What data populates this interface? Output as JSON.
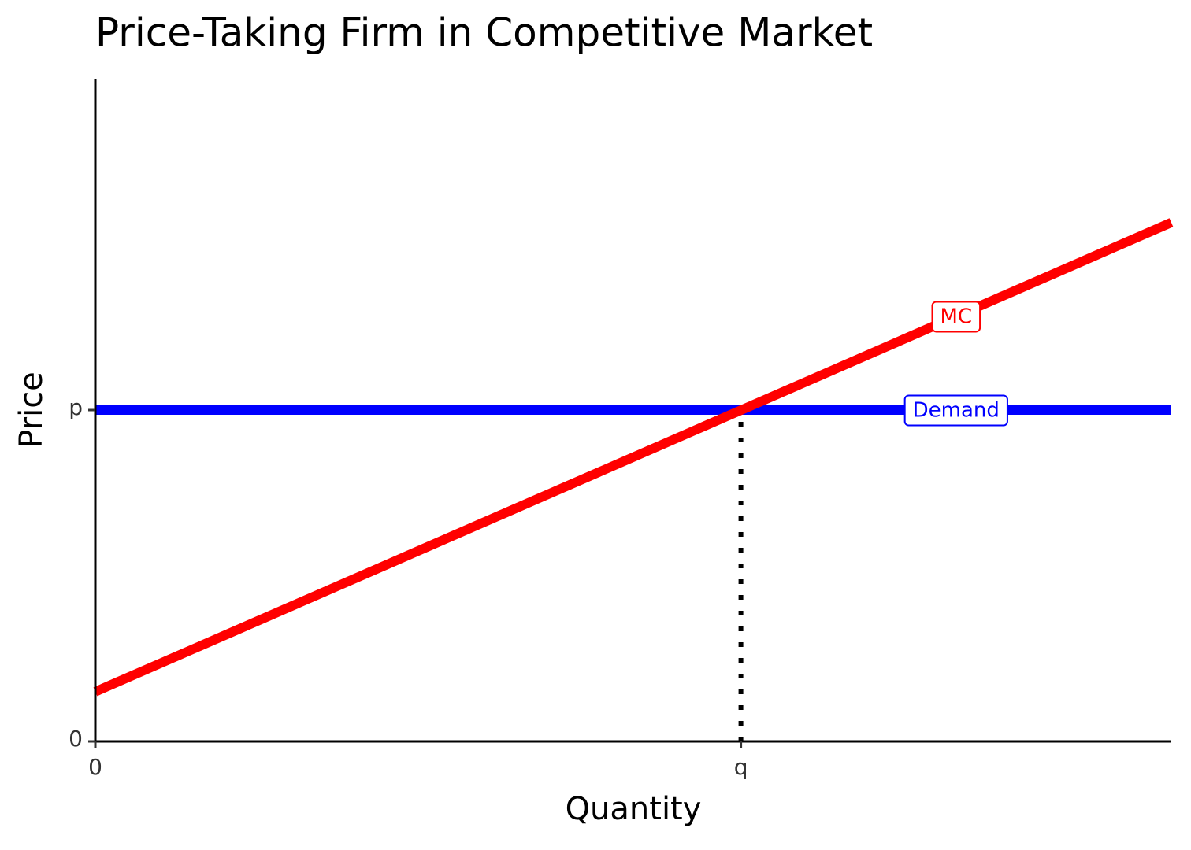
{
  "chart_data": {
    "type": "line",
    "title": "Price-Taking Firm in Competitive Market",
    "x_label": "Quantity",
    "y_label": "Price",
    "xlim": [
      0,
      10
    ],
    "ylim": [
      0,
      10
    ],
    "xticks": [
      0,
      {
        "value": 6,
        "label": "q"
      }
    ],
    "yticks": [
      0,
      {
        "value": 5,
        "label": "p"
      }
    ],
    "grid": false,
    "series": [
      {
        "name": "Demand",
        "color": "#0000ff",
        "x": [
          0,
          10
        ],
        "values": [
          5,
          5
        ]
      },
      {
        "name": "MC",
        "color": "#ff0000",
        "x": [
          0,
          10
        ],
        "values": [
          0.75,
          7.83
        ]
      }
    ]
  }
}
